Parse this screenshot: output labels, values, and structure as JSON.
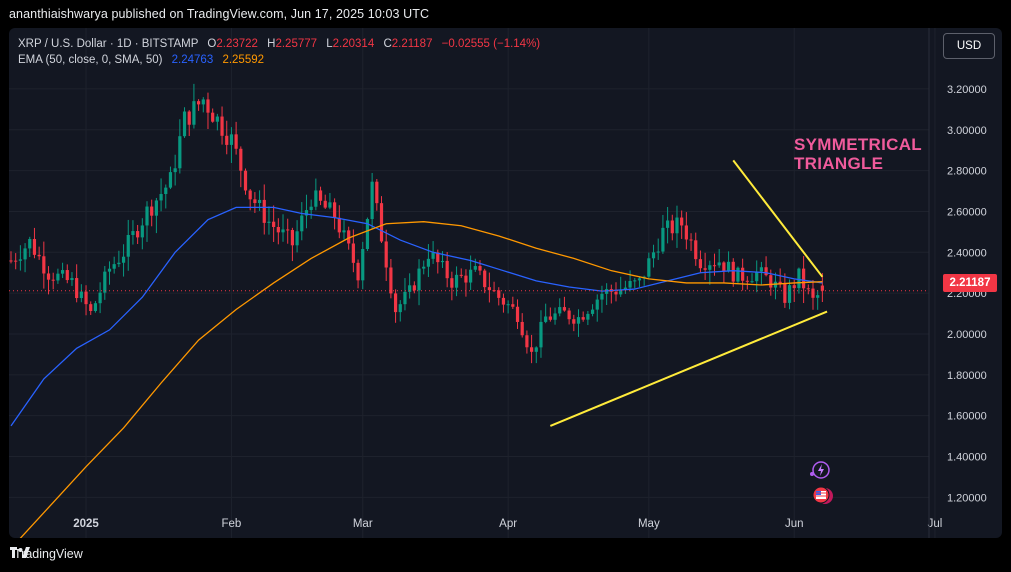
{
  "header": {
    "published": "ananthiaishwarya published on TradingView.com, Jun 17, 2025 10:03 UTC"
  },
  "legend": {
    "symbol": "XRP / U.S. Dollar · 1D · BITSTAMP",
    "o_label": "O",
    "o_value": "2.23722",
    "h_label": "H",
    "h_value": "2.25777",
    "l_label": "L",
    "l_value": "2.20314",
    "c_label": "C",
    "c_value": "2.21187",
    "change": "−0.02555 (−1.14%)",
    "ema_label": "EMA (50, close, 0, SMA, 50)",
    "ema_value_1": "2.24763",
    "ema_value_2": "2.25592"
  },
  "currency_button": "USD",
  "last_price": "2.21187",
  "annotation": {
    "line1": "SYMMETRICAL",
    "line2": "TRIANGLE"
  },
  "footer": {
    "brand": "TradingView"
  },
  "colors": {
    "up": "#089981",
    "down": "#f23645",
    "ema_blue": "#2962ff",
    "ema_orange": "#ff9800",
    "trendline": "#ffeb3b",
    "annotation": "#f05b9c"
  },
  "chart_data": {
    "type": "candlestick",
    "y_ticks": [
      "3.20000",
      "3.00000",
      "2.80000",
      "2.60000",
      "2.40000",
      "2.20000",
      "2.00000",
      "1.80000",
      "1.60000",
      "1.40000",
      "1.20000"
    ],
    "x_ticks": [
      "2025",
      "Feb",
      "Mar",
      "Apr",
      "May",
      "Jun",
      "Jul"
    ],
    "ylim": [
      1.05,
      3.42
    ],
    "series": [
      {
        "kind": "candles",
        "x_start": "2024-12-16",
        "x_end": "2025-06-17",
        "anchors": [
          [
            0,
            2.36
          ],
          [
            4,
            2.45
          ],
          [
            8,
            2.3
          ],
          [
            13,
            2.25
          ],
          [
            17,
            2.1
          ],
          [
            21,
            2.32
          ],
          [
            24,
            2.4
          ],
          [
            29,
            2.6
          ],
          [
            34,
            2.75
          ],
          [
            37,
            3.05
          ],
          [
            41,
            3.15
          ],
          [
            47,
            2.95
          ],
          [
            51,
            2.68
          ],
          [
            55,
            2.55
          ],
          [
            60,
            2.44
          ],
          [
            64,
            2.67
          ],
          [
            69,
            2.58
          ],
          [
            74,
            2.3
          ],
          [
            77,
            2.72
          ],
          [
            82,
            2.12
          ],
          [
            85,
            2.2
          ],
          [
            89,
            2.4
          ],
          [
            94,
            2.26
          ],
          [
            99,
            2.3
          ],
          [
            104,
            2.18
          ],
          [
            108,
            2.1
          ],
          [
            111,
            1.9
          ],
          [
            114,
            2.08
          ],
          [
            118,
            2.1
          ],
          [
            121,
            2.08
          ],
          [
            126,
            2.2
          ],
          [
            130,
            2.22
          ],
          [
            134,
            2.25
          ],
          [
            139,
            2.5
          ],
          [
            143,
            2.54
          ],
          [
            147,
            2.36
          ],
          [
            151,
            2.36
          ],
          [
            155,
            2.28
          ],
          [
            159,
            2.3
          ],
          [
            162,
            2.26
          ],
          [
            165,
            2.18
          ],
          [
            168,
            2.28
          ],
          [
            171,
            2.16
          ],
          [
            173,
            2.21
          ]
        ]
      },
      {
        "kind": "ema",
        "name": "EMA 50",
        "color": "#2962ff",
        "points": [
          [
            0,
            1.55
          ],
          [
            7,
            1.78
          ],
          [
            14,
            1.93
          ],
          [
            21,
            2.02
          ],
          [
            28,
            2.18
          ],
          [
            35,
            2.4
          ],
          [
            42,
            2.56
          ],
          [
            48,
            2.62
          ],
          [
            56,
            2.62
          ],
          [
            62,
            2.59
          ],
          [
            69,
            2.57
          ],
          [
            76,
            2.54
          ],
          [
            83,
            2.46
          ],
          [
            90,
            2.4
          ],
          [
            98,
            2.36
          ],
          [
            105,
            2.31
          ],
          [
            112,
            2.26
          ],
          [
            119,
            2.23
          ],
          [
            126,
            2.21
          ],
          [
            133,
            2.22
          ],
          [
            140,
            2.26
          ],
          [
            147,
            2.3
          ],
          [
            154,
            2.31
          ],
          [
            161,
            2.3
          ],
          [
            167,
            2.27
          ],
          [
            173,
            2.25
          ]
        ]
      },
      {
        "kind": "ema",
        "name": "EMA 200",
        "color": "#ff9800",
        "points": [
          [
            0,
            0.95
          ],
          [
            8,
            1.15
          ],
          [
            16,
            1.35
          ],
          [
            24,
            1.54
          ],
          [
            32,
            1.76
          ],
          [
            40,
            1.97
          ],
          [
            48,
            2.12
          ],
          [
            56,
            2.25
          ],
          [
            64,
            2.37
          ],
          [
            72,
            2.47
          ],
          [
            80,
            2.54
          ],
          [
            88,
            2.55
          ],
          [
            96,
            2.53
          ],
          [
            104,
            2.48
          ],
          [
            112,
            2.42
          ],
          [
            120,
            2.37
          ],
          [
            128,
            2.31
          ],
          [
            136,
            2.27
          ],
          [
            144,
            2.25
          ],
          [
            152,
            2.25
          ],
          [
            160,
            2.24
          ],
          [
            167,
            2.25
          ],
          [
            173,
            2.256
          ]
        ]
      },
      {
        "kind": "trendline",
        "name": "upper",
        "from": [
          154,
          2.85
        ],
        "to": [
          173,
          2.28
        ]
      },
      {
        "kind": "trendline",
        "name": "lower",
        "from": [
          115,
          1.55
        ],
        "to": [
          174,
          2.11
        ]
      }
    ]
  }
}
